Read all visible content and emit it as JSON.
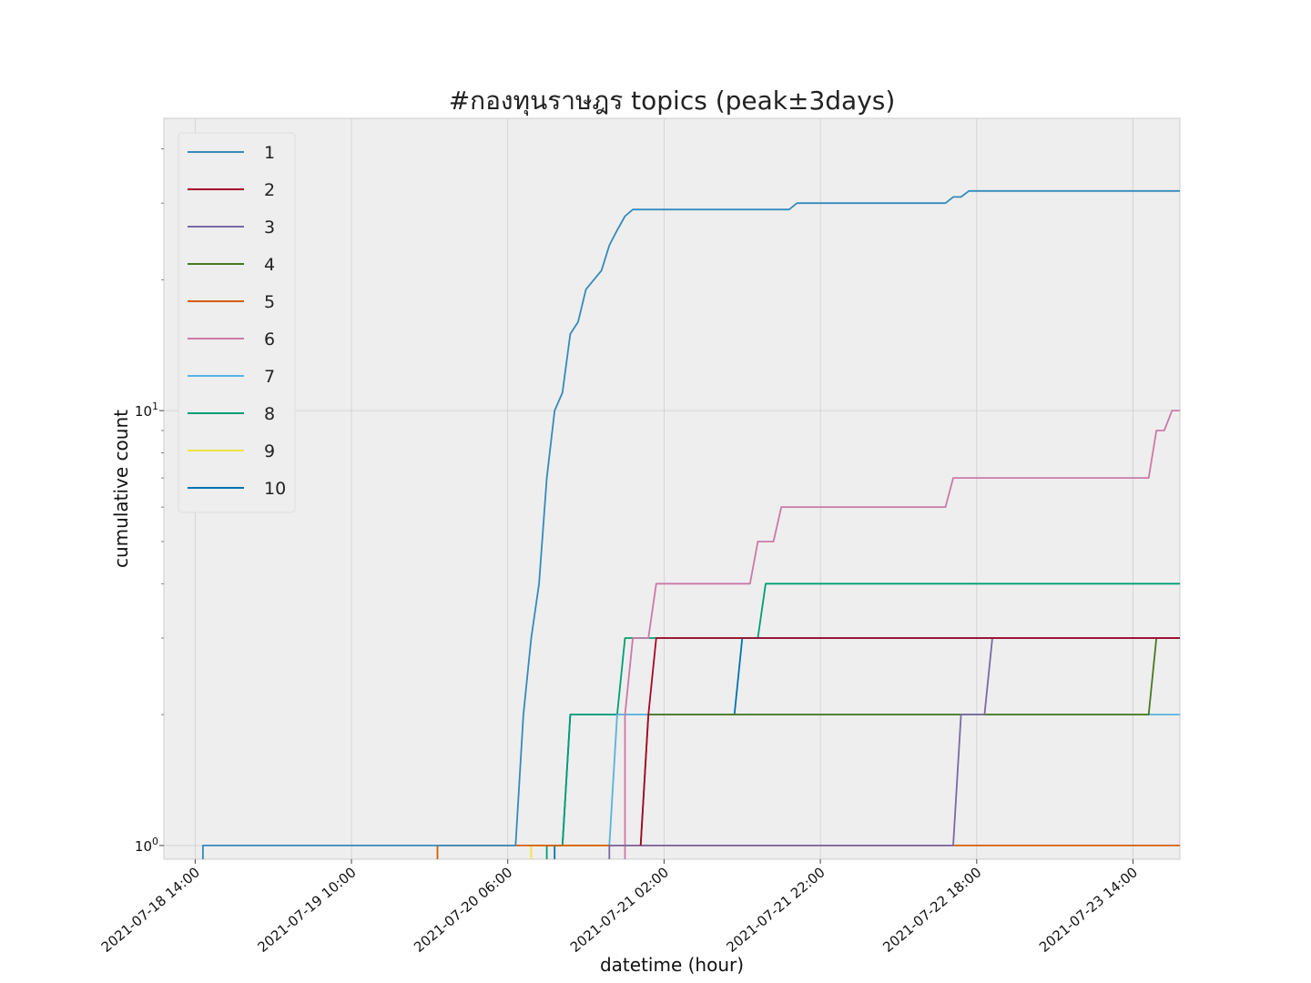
{
  "chart_data": {
    "type": "line",
    "title": "#กองทุนราษฎร topics (peak±3days)",
    "xlabel": "datetime (hour)",
    "ylabel": "cumulative count",
    "yscale": "log",
    "ylim": [
      0.93,
      47
    ],
    "xlim": [
      "2021-07-18 10:00",
      "2021-07-23 20:00"
    ],
    "x_ticks": [
      "2021-07-18 14:00",
      "2021-07-19 10:00",
      "2021-07-20 06:00",
      "2021-07-21 02:00",
      "2021-07-21 22:00",
      "2021-07-22 18:00",
      "2021-07-23 14:00"
    ],
    "y_ticks": [
      {
        "value": 1,
        "base": "10",
        "exp": "0"
      },
      {
        "value": 10,
        "base": "10",
        "exp": "1"
      }
    ],
    "grid": true,
    "legend_position": "upper-left",
    "series": [
      {
        "name": "1",
        "color": "#348ABD",
        "points": [
          [
            "2021-07-18 15:00",
            0.5
          ],
          [
            "2021-07-18 15:00",
            1
          ],
          [
            "2021-07-20 07:00",
            1
          ],
          [
            "2021-07-20 08:00",
            2
          ],
          [
            "2021-07-20 09:00",
            3
          ],
          [
            "2021-07-20 10:00",
            4
          ],
          [
            "2021-07-20 11:00",
            7
          ],
          [
            "2021-07-20 12:00",
            10
          ],
          [
            "2021-07-20 13:00",
            11
          ],
          [
            "2021-07-20 14:00",
            15
          ],
          [
            "2021-07-20 15:00",
            16
          ],
          [
            "2021-07-20 16:00",
            19
          ],
          [
            "2021-07-20 18:00",
            21
          ],
          [
            "2021-07-20 19:00",
            24
          ],
          [
            "2021-07-20 20:00",
            26
          ],
          [
            "2021-07-20 21:00",
            28
          ],
          [
            "2021-07-20 22:00",
            29
          ],
          [
            "2021-07-21 18:00",
            29
          ],
          [
            "2021-07-21 19:00",
            30
          ],
          [
            "2021-07-22 14:00",
            30
          ],
          [
            "2021-07-22 15:00",
            31
          ],
          [
            "2021-07-22 16:00",
            31
          ],
          [
            "2021-07-22 17:00",
            32
          ],
          [
            "2021-07-23 23:00",
            32
          ]
        ]
      },
      {
        "name": "2",
        "color": "#A60628",
        "points": [
          [
            "2021-07-20 23:00",
            1
          ],
          [
            "2021-07-21 00:00",
            2
          ],
          [
            "2021-07-21 01:00",
            3
          ],
          [
            "2021-07-23 23:00",
            3
          ]
        ]
      },
      {
        "name": "3",
        "color": "#7A68A6",
        "points": [
          [
            "2021-07-20 19:00",
            0.5
          ],
          [
            "2021-07-20 19:00",
            1
          ],
          [
            "2021-07-22 15:00",
            1
          ],
          [
            "2021-07-22 16:00",
            2
          ],
          [
            "2021-07-22 19:00",
            2
          ],
          [
            "2021-07-22 20:00",
            3
          ],
          [
            "2021-07-23 23:00",
            3
          ]
        ]
      },
      {
        "name": "4",
        "color": "#467821",
        "points": [
          [
            "2021-07-20 23:00",
            1
          ],
          [
            "2021-07-21 00:00",
            2
          ],
          [
            "2021-07-23 16:00",
            2
          ],
          [
            "2021-07-23 17:00",
            3
          ],
          [
            "2021-07-23 23:00",
            3
          ]
        ]
      },
      {
        "name": "5",
        "color": "#D55E00",
        "points": [
          [
            "2021-07-19 21:00",
            0.5
          ],
          [
            "2021-07-19 21:00",
            1
          ],
          [
            "2021-07-23 23:00",
            1
          ]
        ]
      },
      {
        "name": "6",
        "color": "#CC79A7",
        "points": [
          [
            "2021-07-20 21:00",
            0.5
          ],
          [
            "2021-07-20 21:00",
            2
          ],
          [
            "2021-07-20 22:00",
            3
          ],
          [
            "2021-07-21 00:00",
            3
          ],
          [
            "2021-07-21 01:00",
            4
          ],
          [
            "2021-07-21 13:00",
            4
          ],
          [
            "2021-07-21 14:00",
            5
          ],
          [
            "2021-07-21 16:00",
            5
          ],
          [
            "2021-07-21 17:00",
            6
          ],
          [
            "2021-07-22 14:00",
            6
          ],
          [
            "2021-07-22 15:00",
            7
          ],
          [
            "2021-07-23 16:00",
            7
          ],
          [
            "2021-07-23 17:00",
            9
          ],
          [
            "2021-07-23 18:00",
            9
          ],
          [
            "2021-07-23 19:00",
            10
          ],
          [
            "2021-07-23 23:00",
            10
          ]
        ]
      },
      {
        "name": "7",
        "color": "#56B4E9",
        "points": [
          [
            "2021-07-20 19:00",
            1
          ],
          [
            "2021-07-20 20:00",
            2
          ],
          [
            "2021-07-23 23:00",
            2
          ]
        ]
      },
      {
        "name": "8",
        "color": "#009E73",
        "points": [
          [
            "2021-07-20 11:00",
            0.5
          ],
          [
            "2021-07-20 11:00",
            1
          ],
          [
            "2021-07-20 13:00",
            1
          ],
          [
            "2021-07-20 14:00",
            2
          ],
          [
            "2021-07-20 20:00",
            2
          ],
          [
            "2021-07-20 21:00",
            3
          ],
          [
            "2021-07-21 14:00",
            3
          ],
          [
            "2021-07-21 15:00",
            4
          ],
          [
            "2021-07-23 23:00",
            4
          ]
        ]
      },
      {
        "name": "9",
        "color": "#F0E442",
        "points": [
          [
            "2021-07-20 09:00",
            0.5
          ],
          [
            "2021-07-20 09:00",
            1
          ],
          [
            "2021-07-20 19:00",
            1
          ],
          [
            "2021-07-20 20:00",
            2
          ],
          [
            "2021-07-23 23:00",
            2
          ]
        ]
      },
      {
        "name": "10",
        "color": "#0072B2",
        "points": [
          [
            "2021-07-20 12:00",
            0.5
          ],
          [
            "2021-07-20 12:00",
            1
          ],
          [
            "2021-07-20 13:00",
            1
          ],
          [
            "2021-07-20 14:00",
            2
          ],
          [
            "2021-07-21 11:00",
            2
          ],
          [
            "2021-07-21 12:00",
            3
          ],
          [
            "2021-07-23 23:00",
            3
          ]
        ]
      }
    ]
  }
}
